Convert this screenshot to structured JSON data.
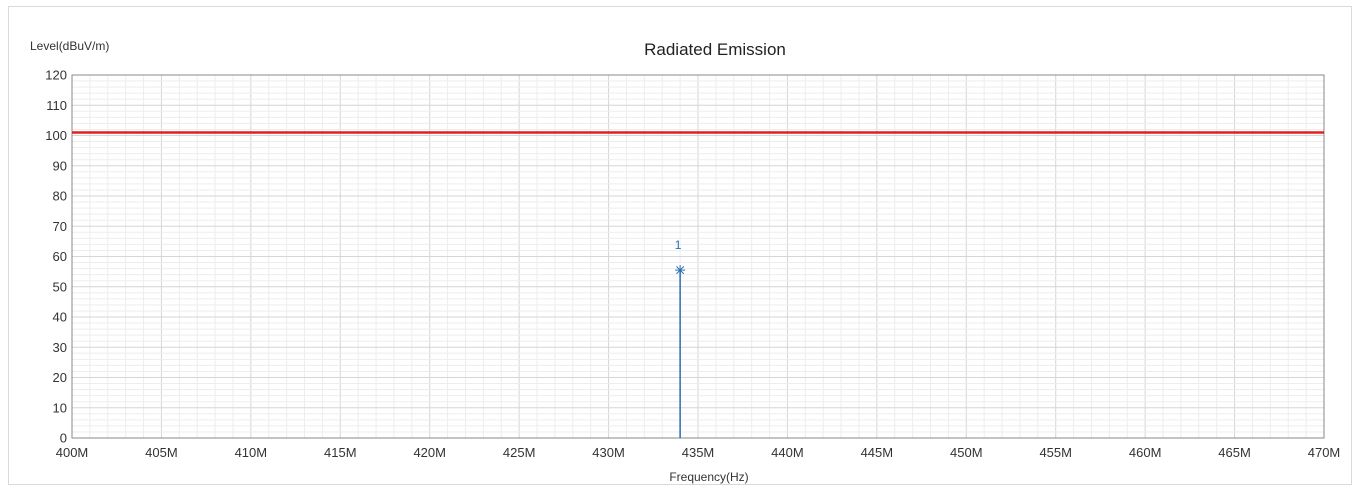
{
  "chart_data": {
    "type": "line",
    "title": "Radiated Emission",
    "xlabel": "Frequency(Hz)",
    "ylabel": "Level(dBuV/m)",
    "xlim": [
      400,
      470
    ],
    "ylim": [
      0,
      120
    ],
    "x_tick_labels": [
      "400M",
      "405M",
      "410M",
      "415M",
      "420M",
      "425M",
      "430M",
      "435M",
      "440M",
      "445M",
      "450M",
      "455M",
      "460M",
      "465M",
      "470M"
    ],
    "y_tick_labels": [
      "0",
      "10",
      "20",
      "30",
      "40",
      "50",
      "60",
      "70",
      "80",
      "90",
      "100",
      "110",
      "120"
    ],
    "grid": true,
    "series": [
      {
        "kind": "limit-line",
        "x": [
          400,
          470
        ],
        "y": [
          101,
          101
        ],
        "color": "#e02020"
      },
      {
        "kind": "peak",
        "x": [
          434
        ],
        "y": [
          55.5
        ],
        "color": "#2a6fb0"
      }
    ],
    "markers": [
      {
        "label": "1",
        "x": 434,
        "y": 55.5
      }
    ]
  }
}
